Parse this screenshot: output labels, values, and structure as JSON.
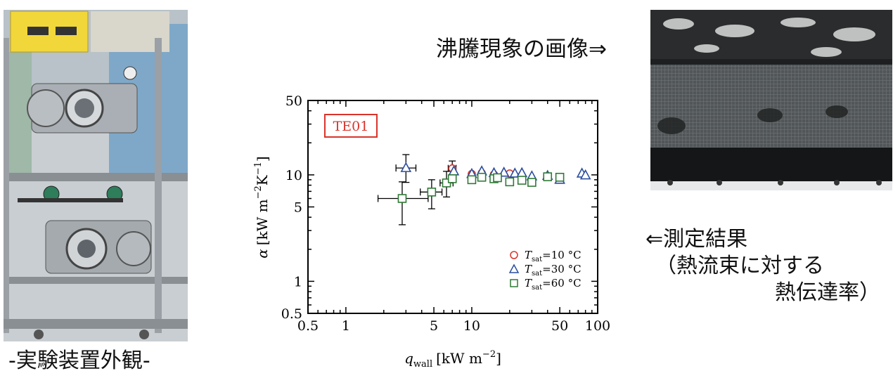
{
  "captions": {
    "apparatus": "-実験装置外観-",
    "boiling_image": "沸騰現象の画像⇒",
    "result_line1": "⇐測定結果",
    "result_line2": "（熱流束に対する",
    "result_line3": "熱伝達率）"
  },
  "chart_data": {
    "type": "scatter",
    "label_box": "TE01",
    "xlabel_symbol": "q",
    "xlabel_sub": "wall",
    "xlabel_unit": "[kW m",
    "xlabel_exp": "−2",
    "xlabel_close": "]",
    "ylabel_symbol": "α",
    "ylabel_unit": "[kW m",
    "ylabel_exp1": "−2",
    "ylabel_K": "K",
    "ylabel_exp2": "−1",
    "ylabel_close": "]",
    "x_scale": "log",
    "y_scale": "log",
    "xlim": [
      0.5,
      100
    ],
    "ylim": [
      0.5,
      50
    ],
    "xticks": [
      "0.5",
      "1",
      "5",
      "10",
      "50",
      "100"
    ],
    "yticks": [
      "0.5",
      "1",
      "5",
      "10",
      "50"
    ],
    "legend_position": "bottom-right",
    "series": [
      {
        "name": "T_sat=10 °C",
        "legend_symbol": "T",
        "legend_sub": "sat",
        "legend_rest": "=10 °C",
        "marker": "circle",
        "color": "#d9342b",
        "points": [
          {
            "x": 7.0,
            "y": 11.5,
            "xerr": [
              6.5,
              7.5
            ],
            "yerr": [
              9.5,
              13.5
            ]
          },
          {
            "x": 10.0,
            "y": 10.2
          },
          {
            "x": 12.0,
            "y": 10.4
          },
          {
            "x": 15.0,
            "y": 10.1
          },
          {
            "x": 20.0,
            "y": 10.3
          }
        ]
      },
      {
        "name": "T_sat=30 °C",
        "legend_symbol": "T",
        "legend_sub": "sat",
        "legend_rest": "=30 °C",
        "marker": "triangle",
        "color": "#2b4ea0",
        "points": [
          {
            "x": 3.0,
            "y": 11.6,
            "xerr": [
              2.5,
              3.6
            ],
            "yerr": [
              8.5,
              15.5
            ]
          },
          {
            "x": 7.2,
            "y": 10.8
          },
          {
            "x": 10.0,
            "y": 10.2
          },
          {
            "x": 12.0,
            "y": 10.8
          },
          {
            "x": 15.0,
            "y": 10.4
          },
          {
            "x": 18.0,
            "y": 10.5
          },
          {
            "x": 22.0,
            "y": 10.3
          },
          {
            "x": 25.0,
            "y": 10.4
          },
          {
            "x": 30.0,
            "y": 9.7
          },
          {
            "x": 40.0,
            "y": 9.8
          },
          {
            "x": 50.0,
            "y": 9.0
          },
          {
            "x": 75.0,
            "y": 10.3
          },
          {
            "x": 80.0,
            "y": 9.9
          }
        ]
      },
      {
        "name": "T_sat=60 °C",
        "legend_symbol": "T",
        "legend_sub": "sat",
        "legend_rest": "=60 °C",
        "marker": "square",
        "color": "#2f7a35",
        "points": [
          {
            "x": 2.8,
            "y": 6.0,
            "xerr": [
              1.8,
              4.5
            ],
            "yerr": [
              3.4,
              8.6
            ]
          },
          {
            "x": 4.8,
            "y": 6.9,
            "xerr": [
              3.9,
              5.8
            ],
            "yerr": [
              4.8,
              9.0
            ]
          },
          {
            "x": 6.3,
            "y": 8.4,
            "xerr": [
              5.6,
              7.1
            ],
            "yerr": [
              6.2,
              10.8
            ]
          },
          {
            "x": 7.0,
            "y": 9.2
          },
          {
            "x": 10.0,
            "y": 9.0
          },
          {
            "x": 12.0,
            "y": 9.5
          },
          {
            "x": 15.0,
            "y": 9.2
          },
          {
            "x": 16.0,
            "y": 9.4
          },
          {
            "x": 20.0,
            "y": 8.6
          },
          {
            "x": 25.0,
            "y": 8.9
          },
          {
            "x": 30.0,
            "y": 8.5
          },
          {
            "x": 40.0,
            "y": 9.6
          },
          {
            "x": 50.0,
            "y": 9.5
          }
        ]
      }
    ]
  }
}
